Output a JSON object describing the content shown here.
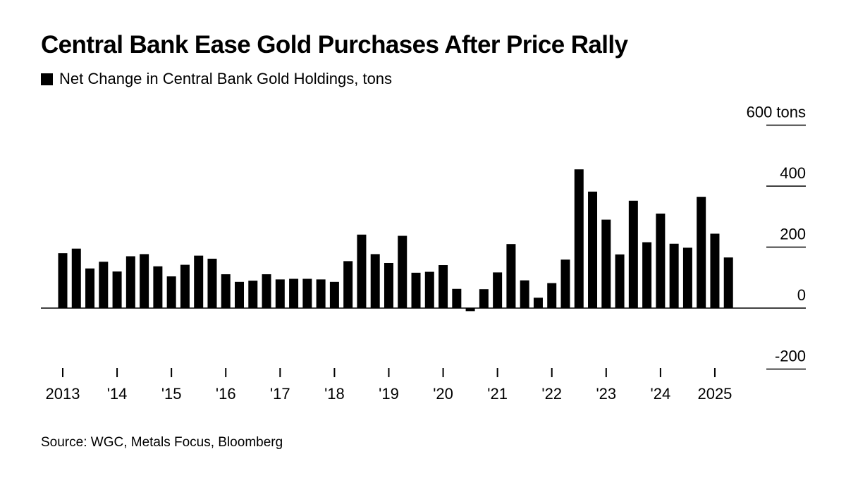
{
  "title": "Central Bank Ease Gold Purchases After Price Rally",
  "legend_label": "Net Change in Central Bank Gold Holdings, tons",
  "source": "Source: WGC, Metals Focus, Bloomberg",
  "chart_data": {
    "type": "bar",
    "title": "Central Bank Ease Gold Purchases After Price Rally",
    "series": [
      {
        "name": "Net Change in Central Bank Gold Holdings, tons",
        "color": "#000000",
        "values": [
          180,
          195,
          130,
          152,
          120,
          170,
          177,
          137,
          104,
          142,
          172,
          162,
          111,
          86,
          90,
          111,
          94,
          96,
          96,
          94,
          86,
          154,
          241,
          177,
          148,
          237,
          116,
          119,
          141,
          63,
          -10,
          62,
          117,
          210,
          91,
          34,
          82,
          159,
          455,
          382,
          290,
          176,
          352,
          216,
          310,
          211,
          198,
          365,
          244,
          166
        ]
      }
    ],
    "categories": [
      "2013 Q1",
      "2013 Q2",
      "2013 Q3",
      "2013 Q4",
      "2014 Q1",
      "2014 Q2",
      "2014 Q3",
      "2014 Q4",
      "2015 Q1",
      "2015 Q2",
      "2015 Q3",
      "2015 Q4",
      "2016 Q1",
      "2016 Q2",
      "2016 Q3",
      "2016 Q4",
      "2017 Q1",
      "2017 Q2",
      "2017 Q3",
      "2017 Q4",
      "2018 Q1",
      "2018 Q2",
      "2018 Q3",
      "2018 Q4",
      "2019 Q1",
      "2019 Q2",
      "2019 Q3",
      "2019 Q4",
      "2020 Q1",
      "2020 Q2",
      "2020 Q3",
      "2020 Q4",
      "2021 Q1",
      "2021 Q2",
      "2021 Q3",
      "2021 Q4",
      "2022 Q1",
      "2022 Q2",
      "2022 Q3",
      "2022 Q4",
      "2023 Q1",
      "2023 Q2",
      "2023 Q3",
      "2023 Q4",
      "2024 Q1",
      "2024 Q2",
      "2024 Q3",
      "2024 Q4",
      "2025 Q1",
      "2025 Q2"
    ],
    "x_tick_labels": [
      "2013",
      "'14",
      "'15",
      "'16",
      "'17",
      "'18",
      "'19",
      "'20",
      "'21",
      "'22",
      "'23",
      "'24",
      "2025"
    ],
    "y_tick_values": [
      600,
      400,
      200,
      0,
      -200
    ],
    "y_tick_labels": [
      "600 tons",
      "400",
      "200",
      "0",
      "-200"
    ],
    "ylim": [
      -200,
      600
    ],
    "xlabel": "",
    "ylabel": "",
    "grid": false,
    "legend_position": "top-left"
  }
}
